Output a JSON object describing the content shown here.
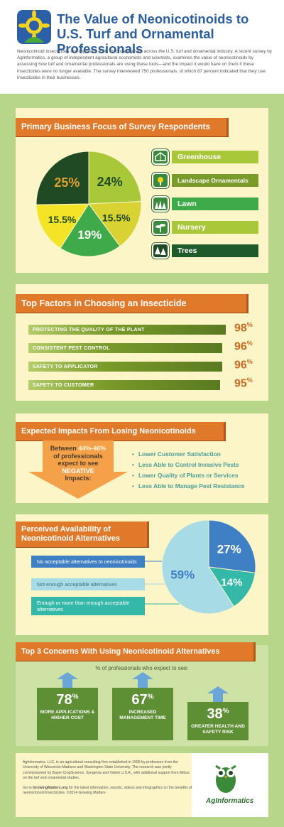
{
  "header": {
    "title_line1": "The Value of Neonicotinoids to",
    "title_line2": "U.S. Turf and Ornamental Professionals",
    "intro": "Neonicotinoid insecticides are important tools for professionals across the U.S. turf and ornamental industry. A recent survey by AgInformatics, a group of independent agricultural economists and scientists, examines the value of neonicotinoids by assessing how turf and ornamental professionals are using these tools—and the impact it would have on them if these insecticides were no longer available. The survey interviewed 750 professionals, of which 87 percent indicated that they use insecticides in their businesses."
  },
  "section1": {
    "title": "Primary Business Focus of Survey Respondents",
    "legend": [
      {
        "label": "Greenhouse",
        "color": "#a8c83a",
        "icon": "greenhouse-icon"
      },
      {
        "label": "Landscape Ornamentals",
        "color": "#7a9a2a",
        "icon": "flower-icon"
      },
      {
        "label": "Lawn",
        "color": "#3faa4a",
        "icon": "grass-icon"
      },
      {
        "label": "Nursery",
        "color": "#a8c83a",
        "icon": "sprout-icon"
      },
      {
        "label": "Trees",
        "color": "#1f5a2a",
        "icon": "trees-icon"
      }
    ]
  },
  "section2": {
    "title": "Top Factors in Choosing an Insecticide",
    "factors": [
      {
        "label": "PROTECTING THE QUALITY OF THE PLANT",
        "value": "98",
        "unit": "%"
      },
      {
        "label": "CONSISTENT PEST CONTROL",
        "value": "96",
        "unit": "%"
      },
      {
        "label": "SAFETY TO APPLICATOR",
        "value": "96",
        "unit": "%"
      },
      {
        "label": "SAFETY TO CUSTOMER",
        "value": "95",
        "unit": "%"
      }
    ]
  },
  "section3": {
    "title": "Expected Impacts From Losing Neonicotinoids",
    "arrow_line1": "Between",
    "arrow_range": "44%-46%",
    "arrow_line2": "of professionals",
    "arrow_line3": "expect to see",
    "arrow_line4": "NEGATIVE",
    "arrow_line5": "Impacts:",
    "bullets": [
      "Lower Customer Satisfaction",
      "Less Able to Control Invasive Pests",
      "Lower Quality of Plants or Services",
      "Less Able to Manage Pest Resistance"
    ]
  },
  "section4": {
    "title_line1": "Perceived Availability of",
    "title_line2": "Neonicotinoid Alternatives",
    "labels": [
      {
        "text": "No acceptable alternatives to neonicotinoids",
        "color": "#3f7fc4"
      },
      {
        "text": "Not enough acceptable alternatives",
        "color": "#a7dbe6"
      },
      {
        "text": "Enough or more than enough acceptable alternatives",
        "color": "#34b8a8"
      }
    ]
  },
  "section5": {
    "title": "Top 3 Concerns With Using Neonicotinoid Alternatives",
    "subtitle": "% of professionals who expect to see:",
    "concerns": [
      {
        "value": "78",
        "unit": "%",
        "label": "MORE APPLICATIONS & HIGHER COST"
      },
      {
        "value": "67",
        "unit": "%",
        "label": "INCREASED MANAGEMENT TIME"
      },
      {
        "value": "38",
        "unit": "%",
        "label": "GREATER HEALTH AND SAFETY RISK"
      }
    ]
  },
  "footer": {
    "text1": "AgInformatics, LLC, is an agricultural consulting firm established in 1995 by professors from the University of Wisconsin-Madison and Washington State University. The research was jointly commissioned by Bayer CropScience, Syngenta and Valent U.S.A., with additional support from Mitsui on the turf and ornamental studies.",
    "text2_pre": "Go to ",
    "text2_link": "GrowingMatters.org",
    "text2_post": " for the latest information, reports, videos and infographics on the benefits of neonicotinoid insecticides. ©2014 Growing Matters",
    "logo_text": "AgInformatics"
  },
  "chart_data": [
    {
      "type": "pie",
      "labels": [
        "Greenhouse",
        "Landscape Ornamentals",
        "Lawn",
        "Nursery",
        "Trees"
      ],
      "values": [
        24,
        15.5,
        19,
        15.5,
        25
      ],
      "value_labels": [
        "24%",
        "15.5%",
        "19%",
        "15.5%",
        "25%"
      ],
      "colors": [
        "#a8c83a",
        "#d8d232",
        "#3faa4a",
        "#f3e428",
        "#1f4a24"
      ]
    },
    {
      "type": "bar",
      "categories": [
        "PROTECTING THE QUALITY OF THE PLANT",
        "CONSISTENT PEST CONTROL",
        "SAFETY TO APPLICATOR",
        "SAFETY TO CUSTOMER"
      ],
      "values": [
        98,
        96,
        96,
        95
      ]
    },
    {
      "type": "pie",
      "labels": [
        "No acceptable alternatives to neonicotinoids",
        "Enough or more than enough acceptable alternatives",
        "Not enough acceptable alternatives"
      ],
      "values": [
        27,
        14,
        59
      ],
      "value_labels": [
        "27%",
        "14%",
        "59%"
      ],
      "colors": [
        "#3f7fc4",
        "#34b8a8",
        "#a7dbe6"
      ]
    },
    {
      "type": "bar",
      "categories": [
        "MORE APPLICATIONS & HIGHER COST",
        "INCREASED MANAGEMENT TIME",
        "GREATER HEALTH AND SAFETY RISK"
      ],
      "values": [
        78,
        67,
        38
      ]
    }
  ]
}
